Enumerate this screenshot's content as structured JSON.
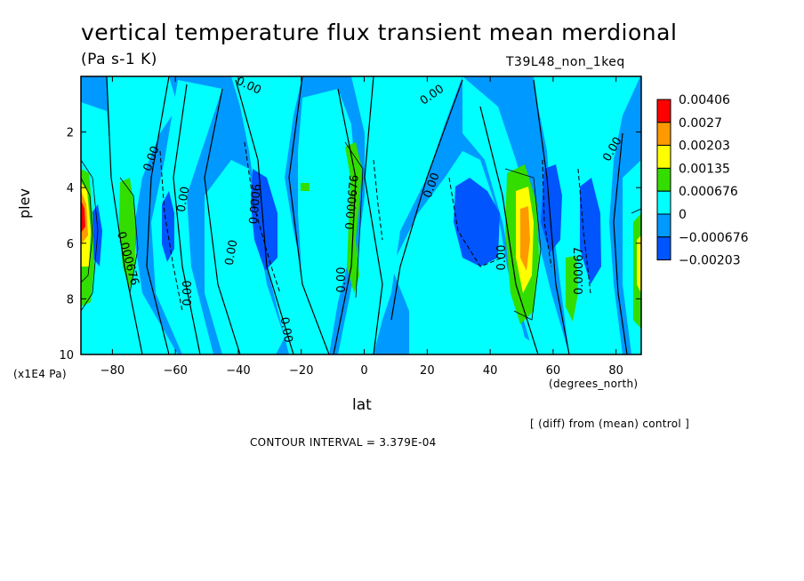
{
  "chart_data": {
    "type": "heatmap",
    "title": "vertical temperature flux transient mean merdional",
    "units": "(Pa s-1 K)",
    "run_label": "T39L48_non_1keq",
    "xlabel": "lat",
    "x_unit_label": "(degrees_north)",
    "ylabel": "plev",
    "y_unit_label": "(x1E4 Pa)",
    "xlim": [
      -90,
      88
    ],
    "ylim": [
      10,
      0
    ],
    "x_ticks": [
      "-80",
      "-60",
      "-40",
      "-20",
      "0",
      "20",
      "40",
      "60",
      "80"
    ],
    "y_ticks": [
      "2",
      "4",
      "6",
      "8",
      "10"
    ],
    "colorbar": {
      "levels": [
        "0.00406",
        "0.0027",
        "0.00203",
        "0.00135",
        "0.000676",
        "0",
        "−0.000676",
        "−0.00203"
      ],
      "colors": [
        "#ff0000",
        "#ff9900",
        "#ffff00",
        "#33dd00",
        "#00ffff",
        "#0099ff",
        "#0055ff"
      ]
    },
    "contour_labels": [
      "0.00",
      "0.00",
      "0.00",
      "0.00",
      "0.00",
      "0.00",
      "0.00",
      "0.00",
      "0.00",
      "0.00",
      "0.0006",
      "0.000676",
      "0.000676",
      "0.00067",
      "0.00"
    ],
    "contour_interval_text": "CONTOUR INTERVAL = 3.379E-04",
    "note": "[ (diff) from (mean) control ]",
    "grid": false
  },
  "colors": {
    "red": "#ff0000",
    "orange": "#ff9900",
    "yellow": "#ffff00",
    "green": "#33dd00",
    "cyan": "#00ffff",
    "blue": "#0099ff",
    "deepblue": "#0055ff"
  }
}
